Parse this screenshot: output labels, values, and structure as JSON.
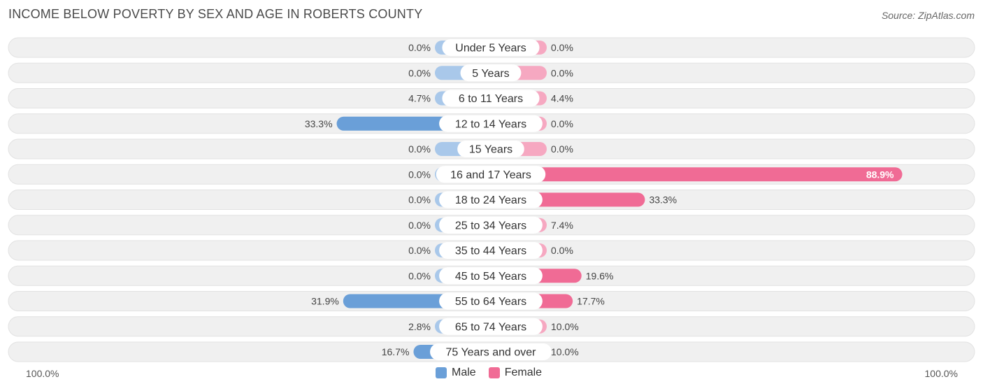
{
  "header": {
    "title": "INCOME BELOW POVERTY BY SEX AND AGE IN ROBERTS COUNTY",
    "source": "Source: ZipAtlas.com"
  },
  "axis": {
    "left_label": "100.0%",
    "right_label": "100.0%"
  },
  "legend": {
    "male_label": "Male",
    "female_label": "Female"
  },
  "colors": {
    "male_strong": "#6a9fd8",
    "male_light": "#a9c8ea",
    "female_strong": "#f06b95",
    "female_light": "#f6a8c1",
    "row_bg": "#f0f0f0"
  },
  "chart_data": {
    "type": "bar",
    "orientation": "diverging-horizontal",
    "categories": [
      "Under 5 Years",
      "5 Years",
      "6 to 11 Years",
      "12 to 14 Years",
      "15 Years",
      "16 and 17 Years",
      "18 to 24 Years",
      "25 to 34 Years",
      "35 to 44 Years",
      "45 to 54 Years",
      "55 to 64 Years",
      "65 to 74 Years",
      "75 Years and over"
    ],
    "series": [
      {
        "name": "Male",
        "values": [
          0.0,
          0.0,
          4.7,
          33.3,
          0.0,
          0.0,
          0.0,
          0.0,
          0.0,
          0.0,
          31.9,
          2.8,
          16.7
        ],
        "labels": [
          "0.0%",
          "0.0%",
          "4.7%",
          "33.3%",
          "0.0%",
          "0.0%",
          "0.0%",
          "0.0%",
          "0.0%",
          "0.0%",
          "31.9%",
          "2.8%",
          "16.7%"
        ]
      },
      {
        "name": "Female",
        "values": [
          0.0,
          0.0,
          4.4,
          0.0,
          0.0,
          88.9,
          33.3,
          7.4,
          0.0,
          19.6,
          17.7,
          10.0,
          10.0
        ],
        "labels": [
          "0.0%",
          "0.0%",
          "4.4%",
          "0.0%",
          "0.0%",
          "88.9%",
          "33.3%",
          "7.4%",
          "0.0%",
          "19.6%",
          "17.7%",
          "10.0%",
          "10.0%"
        ]
      }
    ],
    "xlim": [
      -100,
      100
    ],
    "legend_position": "bottom-center"
  }
}
